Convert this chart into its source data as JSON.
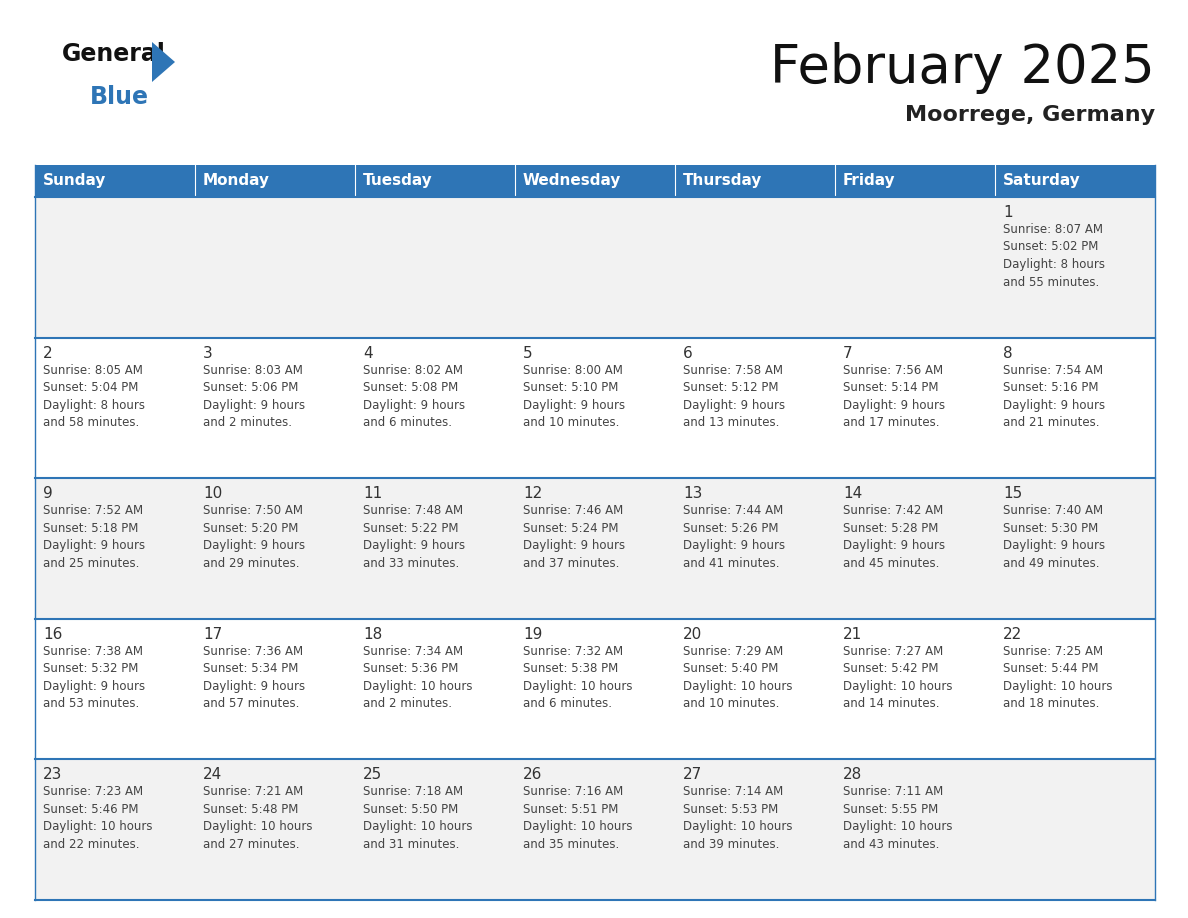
{
  "title": "February 2025",
  "subtitle": "Moorrege, Germany",
  "header_bg_color": "#2E75B6",
  "header_text_color": "#FFFFFF",
  "cell_bg_color_odd": "#F2F2F2",
  "cell_bg_color_even": "#FFFFFF",
  "day_number_color": "#333333",
  "day_text_color": "#444444",
  "grid_line_color": "#2E75B6",
  "days_of_week": [
    "Sunday",
    "Monday",
    "Tuesday",
    "Wednesday",
    "Thursday",
    "Friday",
    "Saturday"
  ],
  "weeks": [
    [
      {
        "day": null,
        "info": null
      },
      {
        "day": null,
        "info": null
      },
      {
        "day": null,
        "info": null
      },
      {
        "day": null,
        "info": null
      },
      {
        "day": null,
        "info": null
      },
      {
        "day": null,
        "info": null
      },
      {
        "day": "1",
        "info": "Sunrise: 8:07 AM\nSunset: 5:02 PM\nDaylight: 8 hours\nand 55 minutes."
      }
    ],
    [
      {
        "day": "2",
        "info": "Sunrise: 8:05 AM\nSunset: 5:04 PM\nDaylight: 8 hours\nand 58 minutes."
      },
      {
        "day": "3",
        "info": "Sunrise: 8:03 AM\nSunset: 5:06 PM\nDaylight: 9 hours\nand 2 minutes."
      },
      {
        "day": "4",
        "info": "Sunrise: 8:02 AM\nSunset: 5:08 PM\nDaylight: 9 hours\nand 6 minutes."
      },
      {
        "day": "5",
        "info": "Sunrise: 8:00 AM\nSunset: 5:10 PM\nDaylight: 9 hours\nand 10 minutes."
      },
      {
        "day": "6",
        "info": "Sunrise: 7:58 AM\nSunset: 5:12 PM\nDaylight: 9 hours\nand 13 minutes."
      },
      {
        "day": "7",
        "info": "Sunrise: 7:56 AM\nSunset: 5:14 PM\nDaylight: 9 hours\nand 17 minutes."
      },
      {
        "day": "8",
        "info": "Sunrise: 7:54 AM\nSunset: 5:16 PM\nDaylight: 9 hours\nand 21 minutes."
      }
    ],
    [
      {
        "day": "9",
        "info": "Sunrise: 7:52 AM\nSunset: 5:18 PM\nDaylight: 9 hours\nand 25 minutes."
      },
      {
        "day": "10",
        "info": "Sunrise: 7:50 AM\nSunset: 5:20 PM\nDaylight: 9 hours\nand 29 minutes."
      },
      {
        "day": "11",
        "info": "Sunrise: 7:48 AM\nSunset: 5:22 PM\nDaylight: 9 hours\nand 33 minutes."
      },
      {
        "day": "12",
        "info": "Sunrise: 7:46 AM\nSunset: 5:24 PM\nDaylight: 9 hours\nand 37 minutes."
      },
      {
        "day": "13",
        "info": "Sunrise: 7:44 AM\nSunset: 5:26 PM\nDaylight: 9 hours\nand 41 minutes."
      },
      {
        "day": "14",
        "info": "Sunrise: 7:42 AM\nSunset: 5:28 PM\nDaylight: 9 hours\nand 45 minutes."
      },
      {
        "day": "15",
        "info": "Sunrise: 7:40 AM\nSunset: 5:30 PM\nDaylight: 9 hours\nand 49 minutes."
      }
    ],
    [
      {
        "day": "16",
        "info": "Sunrise: 7:38 AM\nSunset: 5:32 PM\nDaylight: 9 hours\nand 53 minutes."
      },
      {
        "day": "17",
        "info": "Sunrise: 7:36 AM\nSunset: 5:34 PM\nDaylight: 9 hours\nand 57 minutes."
      },
      {
        "day": "18",
        "info": "Sunrise: 7:34 AM\nSunset: 5:36 PM\nDaylight: 10 hours\nand 2 minutes."
      },
      {
        "day": "19",
        "info": "Sunrise: 7:32 AM\nSunset: 5:38 PM\nDaylight: 10 hours\nand 6 minutes."
      },
      {
        "day": "20",
        "info": "Sunrise: 7:29 AM\nSunset: 5:40 PM\nDaylight: 10 hours\nand 10 minutes."
      },
      {
        "day": "21",
        "info": "Sunrise: 7:27 AM\nSunset: 5:42 PM\nDaylight: 10 hours\nand 14 minutes."
      },
      {
        "day": "22",
        "info": "Sunrise: 7:25 AM\nSunset: 5:44 PM\nDaylight: 10 hours\nand 18 minutes."
      }
    ],
    [
      {
        "day": "23",
        "info": "Sunrise: 7:23 AM\nSunset: 5:46 PM\nDaylight: 10 hours\nand 22 minutes."
      },
      {
        "day": "24",
        "info": "Sunrise: 7:21 AM\nSunset: 5:48 PM\nDaylight: 10 hours\nand 27 minutes."
      },
      {
        "day": "25",
        "info": "Sunrise: 7:18 AM\nSunset: 5:50 PM\nDaylight: 10 hours\nand 31 minutes."
      },
      {
        "day": "26",
        "info": "Sunrise: 7:16 AM\nSunset: 5:51 PM\nDaylight: 10 hours\nand 35 minutes."
      },
      {
        "day": "27",
        "info": "Sunrise: 7:14 AM\nSunset: 5:53 PM\nDaylight: 10 hours\nand 39 minutes."
      },
      {
        "day": "28",
        "info": "Sunrise: 7:11 AM\nSunset: 5:55 PM\nDaylight: 10 hours\nand 43 minutes."
      },
      {
        "day": null,
        "info": null
      }
    ]
  ]
}
